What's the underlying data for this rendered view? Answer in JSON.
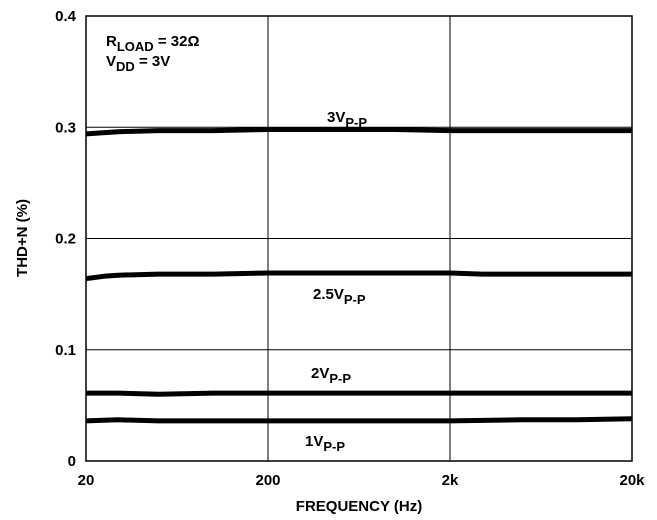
{
  "chart_data": {
    "type": "line",
    "title": "",
    "xlabel": "FREQUENCY (Hz)",
    "ylabel": "THD+N (%)",
    "x_scale": "log",
    "xlim": [
      20,
      20000
    ],
    "ylim": [
      0,
      0.4
    ],
    "grid": true,
    "x_ticks": [
      {
        "value": 20,
        "label": "20"
      },
      {
        "value": 200,
        "label": "200"
      },
      {
        "value": 2000,
        "label": "2k"
      },
      {
        "value": 20000,
        "label": "20k"
      }
    ],
    "y_ticks": [
      {
        "value": 0,
        "label": "0"
      },
      {
        "value": 0.1,
        "label": "0.1"
      },
      {
        "value": 0.2,
        "label": "0.2"
      },
      {
        "value": 0.3,
        "label": "0.3"
      },
      {
        "value": 0.4,
        "label": "0.4"
      }
    ],
    "conditions": [
      {
        "name": "R",
        "sub": "LOAD",
        "value": " = 32Ω"
      },
      {
        "name": "V",
        "sub": "DD",
        "value": " =  3V"
      }
    ],
    "series": [
      {
        "name": "3V",
        "sub": "P-P",
        "color": "#000000",
        "x": [
          20,
          30,
          50,
          100,
          200,
          500,
          1000,
          2000,
          5000,
          10000,
          20000
        ],
        "y": [
          0.294,
          0.296,
          0.297,
          0.297,
          0.298,
          0.298,
          0.298,
          0.297,
          0.297,
          0.297,
          0.297
        ]
      },
      {
        "name": "2.5V",
        "sub": "P-P",
        "color": "#000000",
        "x": [
          20,
          25,
          30,
          50,
          100,
          200,
          500,
          1000,
          2000,
          3000,
          5000,
          10000,
          20000
        ],
        "y": [
          0.164,
          0.166,
          0.167,
          0.168,
          0.168,
          0.169,
          0.169,
          0.169,
          0.169,
          0.168,
          0.168,
          0.168,
          0.168
        ]
      },
      {
        "name": "2V",
        "sub": "P-P",
        "color": "#000000",
        "x": [
          20,
          30,
          50,
          100,
          200,
          500,
          1000,
          2000,
          5000,
          10000,
          20000
        ],
        "y": [
          0.061,
          0.061,
          0.06,
          0.061,
          0.061,
          0.061,
          0.061,
          0.061,
          0.061,
          0.061,
          0.061
        ]
      },
      {
        "name": "1V",
        "sub": "P-P",
        "color": "#000000",
        "x": [
          20,
          30,
          50,
          100,
          200,
          500,
          1000,
          2000,
          5000,
          10000,
          20000
        ],
        "y": [
          0.036,
          0.037,
          0.036,
          0.036,
          0.036,
          0.036,
          0.036,
          0.036,
          0.037,
          0.037,
          0.038
        ]
      }
    ]
  }
}
